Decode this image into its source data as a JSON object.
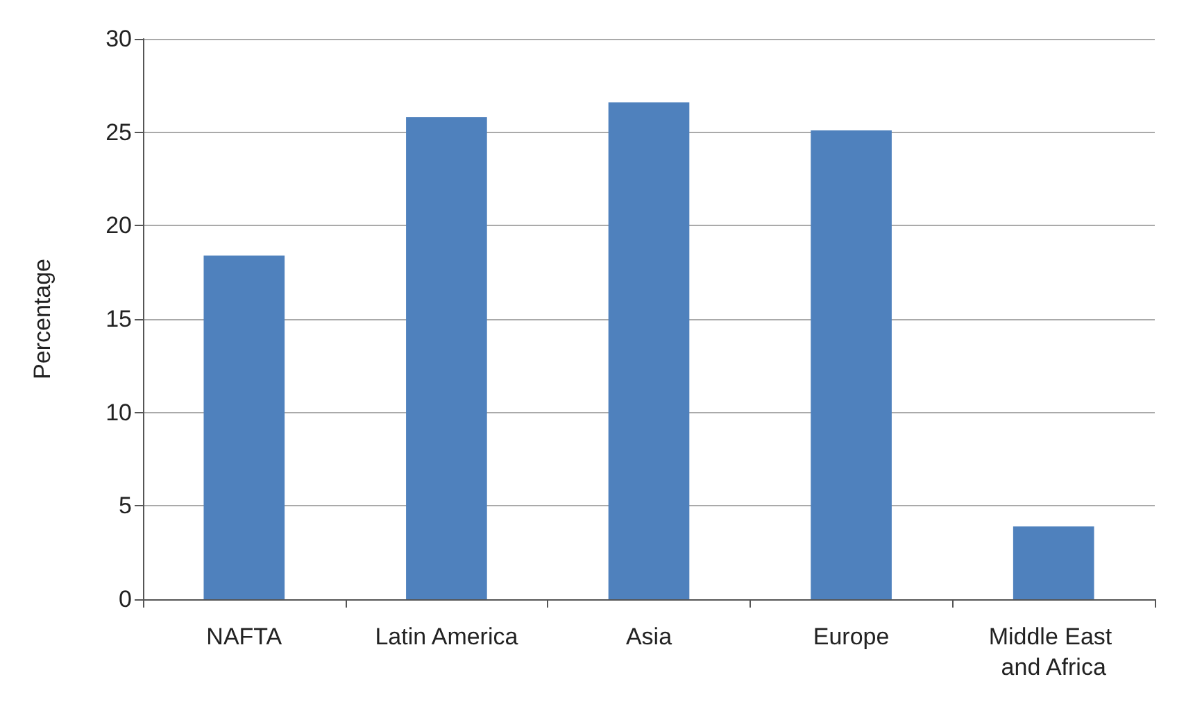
{
  "chart_data": {
    "type": "bar",
    "ylabel": "Percentage",
    "categories": [
      "NAFTA",
      "Latin America",
      "Asia",
      "Europe",
      "Middle East and Africa"
    ],
    "values": [
      18.4,
      25.8,
      26.6,
      25.1,
      3.9
    ],
    "color": "#4f81bd",
    "ylim": [
      0,
      30
    ],
    "yticks": [
      0,
      5,
      10,
      15,
      20,
      25,
      30
    ],
    "grid": "y"
  }
}
